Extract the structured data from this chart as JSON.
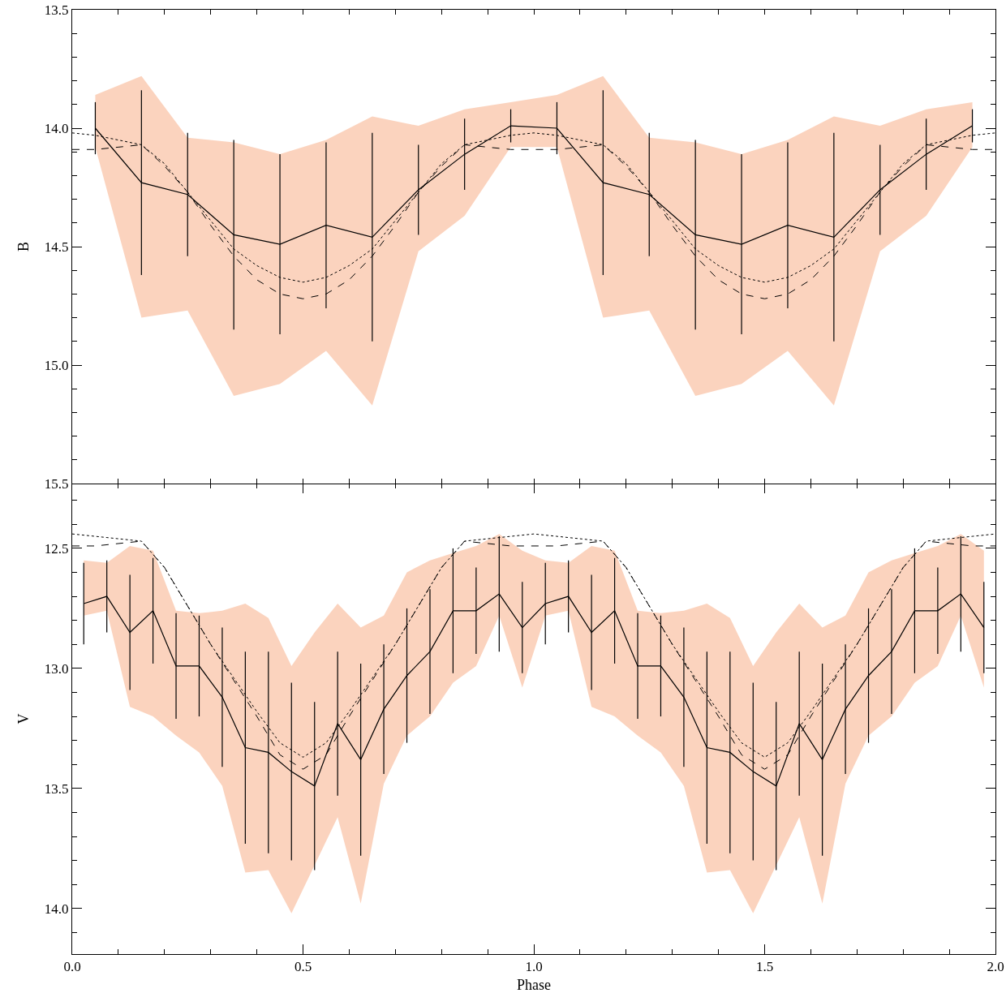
{
  "chart_data": [
    {
      "type": "line",
      "ylabel": "B",
      "xlim": [
        0,
        2
      ],
      "ylim": [
        15.5,
        13.5
      ],
      "tick_labels": "y",
      "grid": false,
      "marker": "none",
      "xticks": [
        {
          "value": 0,
          "label": null
        },
        {
          "value": 0.5,
          "label": null
        },
        {
          "value": 1,
          "label": null
        },
        {
          "value": 1.5,
          "label": null
        },
        {
          "value": 2,
          "label": null
        }
      ],
      "yticks": [
        {
          "value": 13.5,
          "label": "13.5"
        },
        {
          "value": 14,
          "label": "14.0"
        },
        {
          "value": 14.5,
          "label": "14.5"
        },
        {
          "value": 15,
          "label": "15.0"
        },
        {
          "value": 15.5,
          "label": "15.5"
        }
      ],
      "series": [
        {
          "type": "line",
          "color": "#000000",
          "line_style": "solid",
          "x": [
            0.05,
            0.15,
            0.25,
            0.35,
            0.45,
            0.55,
            0.65,
            0.75,
            0.85,
            0.95,
            1.05,
            1.15,
            1.25,
            1.35,
            1.45,
            1.55,
            1.65,
            1.75,
            1.85,
            1.95
          ],
          "values": [
            14.0,
            14.23,
            14.28,
            14.45,
            14.49,
            14.41,
            14.46,
            14.26,
            14.11,
            13.99,
            14.0,
            14.23,
            14.28,
            14.45,
            14.49,
            14.41,
            14.46,
            14.26,
            14.11,
            13.99
          ],
          "errors": [
            0.11,
            0.39,
            0.26,
            0.4,
            0.38,
            0.35,
            0.44,
            0.19,
            0.15,
            0.07,
            0.11,
            0.39,
            0.26,
            0.4,
            0.38,
            0.35,
            0.44,
            0.19,
            0.15,
            0.07
          ],
          "lower": [
            13.86,
            13.78,
            14.04,
            14.06,
            14.11,
            14.05,
            13.95,
            13.99,
            13.92,
            13.89,
            13.86,
            13.78,
            14.04,
            14.06,
            14.11,
            14.05,
            13.95,
            13.99,
            13.92,
            13.89
          ],
          "upper": [
            14.08,
            14.8,
            14.77,
            15.13,
            15.08,
            14.94,
            15.17,
            14.52,
            14.37,
            14.08,
            14.08,
            14.8,
            14.77,
            15.13,
            15.08,
            14.94,
            15.17,
            14.52,
            14.37,
            14.08
          ]
        },
        {
          "type": "line",
          "color": "#000000",
          "line_style": "dotted",
          "x": [
            0,
            0.05,
            0.1,
            0.15,
            0.2,
            0.25,
            0.3,
            0.35,
            0.4,
            0.45,
            0.5,
            0.55,
            0.6,
            0.65,
            0.7,
            0.75,
            0.8,
            0.85,
            0.9,
            0.95,
            1,
            1.05,
            1.1,
            1.15,
            1.2,
            1.25,
            1.3,
            1.35,
            1.4,
            1.45,
            1.5,
            1.55,
            1.6,
            1.65,
            1.7,
            1.75,
            1.8,
            1.85,
            1.9,
            1.95,
            2
          ],
          "values": [
            14.02,
            14.03,
            14.05,
            14.07,
            14.15,
            14.27,
            14.39,
            14.51,
            14.58,
            14.63,
            14.65,
            14.63,
            14.58,
            14.51,
            14.39,
            14.27,
            14.15,
            14.07,
            14.05,
            14.03,
            14.02,
            14.03,
            14.05,
            14.07,
            14.15,
            14.27,
            14.39,
            14.51,
            14.58,
            14.63,
            14.65,
            14.63,
            14.58,
            14.51,
            14.39,
            14.27,
            14.15,
            14.07,
            14.05,
            14.03,
            14.02
          ]
        },
        {
          "type": "line",
          "color": "#000000",
          "line_style": "dashed",
          "x": [
            0,
            0.05,
            0.1,
            0.15,
            0.2,
            0.25,
            0.3,
            0.35,
            0.4,
            0.45,
            0.5,
            0.55,
            0.6,
            0.65,
            0.7,
            0.75,
            0.8,
            0.85,
            0.9,
            0.95,
            1,
            1.05,
            1.1,
            1.15,
            1.2,
            1.25,
            1.3,
            1.35,
            1.4,
            1.45,
            1.5,
            1.55,
            1.6,
            1.65,
            1.7,
            1.75,
            1.8,
            1.85,
            1.9,
            1.95,
            2
          ],
          "values": [
            14.09,
            14.09,
            14.08,
            14.07,
            14.16,
            14.27,
            14.41,
            14.54,
            14.64,
            14.7,
            14.72,
            14.7,
            14.64,
            14.54,
            14.41,
            14.27,
            14.16,
            14.07,
            14.08,
            14.09,
            14.09,
            14.09,
            14.08,
            14.07,
            14.16,
            14.27,
            14.41,
            14.54,
            14.64,
            14.7,
            14.72,
            14.7,
            14.64,
            14.54,
            14.41,
            14.27,
            14.16,
            14.07,
            14.08,
            14.09,
            14.09
          ]
        }
      ]
    },
    {
      "type": "line",
      "xlabel": "Phase",
      "ylabel": "V",
      "xlim": [
        0,
        2
      ],
      "ylim": [
        14.19,
        12.23
      ],
      "grid": false,
      "marker": "none",
      "xticks": [
        {
          "value": 0,
          "label": "0.0"
        },
        {
          "value": 0.5,
          "label": "0.5"
        },
        {
          "value": 1,
          "label": "1.0"
        },
        {
          "value": 1.5,
          "label": "1.5"
        },
        {
          "value": 2,
          "label": "2.0"
        }
      ],
      "yticks": [
        {
          "value": 12.5,
          "label": "12.5"
        },
        {
          "value": 13,
          "label": "13.0"
        },
        {
          "value": 13.5,
          "label": "13.5"
        },
        {
          "value": 14,
          "label": "14.0"
        }
      ],
      "series": [
        {
          "type": "line",
          "color": "#000000",
          "line_style": "solid",
          "x": [
            0.025,
            0.075,
            0.125,
            0.175,
            0.225,
            0.275,
            0.325,
            0.375,
            0.425,
            0.475,
            0.525,
            0.575,
            0.625,
            0.675,
            0.725,
            0.775,
            0.825,
            0.875,
            0.925,
            0.975,
            1.025,
            1.075,
            1.125,
            1.175,
            1.225,
            1.275,
            1.325,
            1.375,
            1.425,
            1.475,
            1.525,
            1.575,
            1.625,
            1.675,
            1.725,
            1.775,
            1.825,
            1.875,
            1.925,
            1.975
          ],
          "values": [
            12.73,
            12.7,
            12.85,
            12.76,
            12.99,
            12.99,
            13.12,
            13.33,
            13.35,
            13.43,
            13.49,
            13.23,
            13.38,
            13.17,
            13.03,
            12.93,
            12.76,
            12.76,
            12.69,
            12.83,
            12.73,
            12.7,
            12.85,
            12.76,
            12.99,
            12.99,
            13.12,
            13.33,
            13.35,
            13.43,
            13.49,
            13.23,
            13.38,
            13.17,
            13.03,
            12.93,
            12.76,
            12.76,
            12.69,
            12.83
          ],
          "errors": [
            0.17,
            0.15,
            0.24,
            0.22,
            0.22,
            0.21,
            0.29,
            0.4,
            0.42,
            0.37,
            0.35,
            0.3,
            0.4,
            0.27,
            0.28,
            0.26,
            0.26,
            0.18,
            0.24,
            0.19,
            0.17,
            0.15,
            0.24,
            0.22,
            0.22,
            0.21,
            0.29,
            0.4,
            0.42,
            0.37,
            0.35,
            0.3,
            0.4,
            0.27,
            0.28,
            0.26,
            0.26,
            0.18,
            0.24,
            0.19
          ],
          "lower": [
            12.55,
            12.56,
            12.49,
            12.51,
            12.76,
            12.77,
            12.76,
            12.73,
            12.79,
            12.99,
            12.85,
            12.73,
            12.83,
            12.78,
            12.6,
            12.55,
            12.52,
            12.49,
            12.44,
            12.51,
            12.55,
            12.56,
            12.49,
            12.51,
            12.76,
            12.77,
            12.76,
            12.73,
            12.79,
            12.99,
            12.85,
            12.73,
            12.83,
            12.78,
            12.6,
            12.55,
            12.52,
            12.49,
            12.44,
            12.51
          ],
          "upper": [
            12.78,
            12.76,
            13.16,
            13.2,
            13.28,
            13.35,
            13.49,
            13.85,
            13.84,
            14.02,
            13.82,
            13.62,
            13.98,
            13.48,
            13.28,
            13.2,
            13.06,
            12.99,
            12.78,
            13.08,
            12.78,
            12.76,
            13.16,
            13.2,
            13.28,
            13.35,
            13.49,
            13.85,
            13.84,
            14.02,
            13.82,
            13.62,
            13.98,
            13.48,
            13.28,
            13.2,
            13.06,
            12.99,
            12.78,
            13.08
          ]
        },
        {
          "type": "line",
          "color": "#000000",
          "line_style": "dotted",
          "x": [
            0,
            0.05,
            0.1,
            0.15,
            0.2,
            0.25,
            0.3,
            0.35,
            0.4,
            0.45,
            0.5,
            0.55,
            0.6,
            0.65,
            0.7,
            0.75,
            0.8,
            0.85,
            0.9,
            0.95,
            1,
            1.05,
            1.1,
            1.15,
            1.2,
            1.25,
            1.3,
            1.35,
            1.4,
            1.45,
            1.5,
            1.55,
            1.6,
            1.65,
            1.7,
            1.75,
            1.8,
            1.85,
            1.9,
            1.95,
            2
          ],
          "values": [
            12.44,
            12.45,
            12.46,
            12.47,
            12.58,
            12.74,
            12.9,
            13.04,
            13.18,
            13.31,
            13.37,
            13.31,
            13.18,
            13.04,
            12.9,
            12.74,
            12.58,
            12.47,
            12.46,
            12.45,
            12.44,
            12.45,
            12.46,
            12.47,
            12.58,
            12.74,
            12.9,
            13.04,
            13.18,
            13.31,
            13.37,
            13.31,
            13.18,
            13.04,
            12.9,
            12.74,
            12.58,
            12.47,
            12.46,
            12.45,
            12.44
          ]
        },
        {
          "type": "line",
          "color": "#000000",
          "line_style": "dashed",
          "x": [
            0,
            0.05,
            0.1,
            0.15,
            0.2,
            0.25,
            0.3,
            0.35,
            0.4,
            0.45,
            0.5,
            0.55,
            0.6,
            0.65,
            0.7,
            0.75,
            0.8,
            0.85,
            0.9,
            0.95,
            1,
            1.05,
            1.1,
            1.15,
            1.2,
            1.25,
            1.3,
            1.35,
            1.4,
            1.45,
            1.5,
            1.55,
            1.6,
            1.65,
            1.7,
            1.75,
            1.8,
            1.85,
            1.9,
            1.95,
            2
          ],
          "values": [
            12.49,
            12.49,
            12.48,
            12.47,
            12.58,
            12.74,
            12.9,
            13.05,
            13.2,
            13.36,
            13.42,
            13.36,
            13.2,
            13.05,
            12.9,
            12.74,
            12.58,
            12.47,
            12.48,
            12.49,
            12.49,
            12.49,
            12.48,
            12.47,
            12.58,
            12.74,
            12.9,
            13.05,
            13.2,
            13.36,
            13.42,
            13.36,
            13.2,
            13.05,
            12.9,
            12.74,
            12.58,
            12.47,
            12.48,
            12.49,
            12.49
          ]
        }
      ]
    }
  ]
}
